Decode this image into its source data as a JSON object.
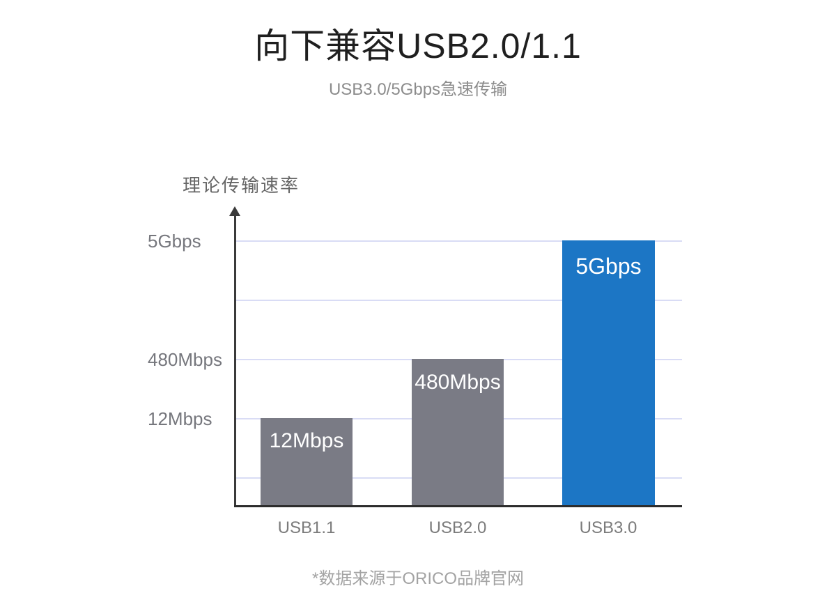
{
  "chart_data": {
    "type": "bar",
    "title": "向下兼容USB2.0/1.1",
    "subtitle": "USB3.0/5Gbps急速传输",
    "ylabel": "理论传输速率",
    "xlabel": "",
    "categories": [
      "USB1.1",
      "USB2.0",
      "USB3.0"
    ],
    "series": [
      {
        "name": "理论传输速率",
        "values_mbps": [
          12,
          480,
          5000
        ]
      }
    ],
    "value_labels": [
      "12Mbps",
      "480Mbps",
      "5Gbps"
    ],
    "ytick_labels": [
      "5Gbps",
      "480Mbps",
      "12Mbps"
    ],
    "yaxis_note": "non-linear scale; labeled gridlines at 5Gbps, 480Mbps, 12Mbps plus two unlabeled gridlines",
    "gridlines": true,
    "legend_position": "none",
    "bar_colors": [
      "#7a7b85",
      "#7a7b85",
      "#1c76c5"
    ],
    "colors": {
      "bar_default": "#7a7b85",
      "bar_accent": "#1c76c5",
      "gridline": "#d9dcf5",
      "axis": "#3a3a3a",
      "title_text": "#1f1f1f",
      "subtitle_text": "#8c8c8c",
      "tick_text": "#76777d",
      "footnote_text": "#a3a3a3",
      "bar_value_text": "#ffffff"
    },
    "footnote": "*数据来源于ORICO品牌官网"
  }
}
